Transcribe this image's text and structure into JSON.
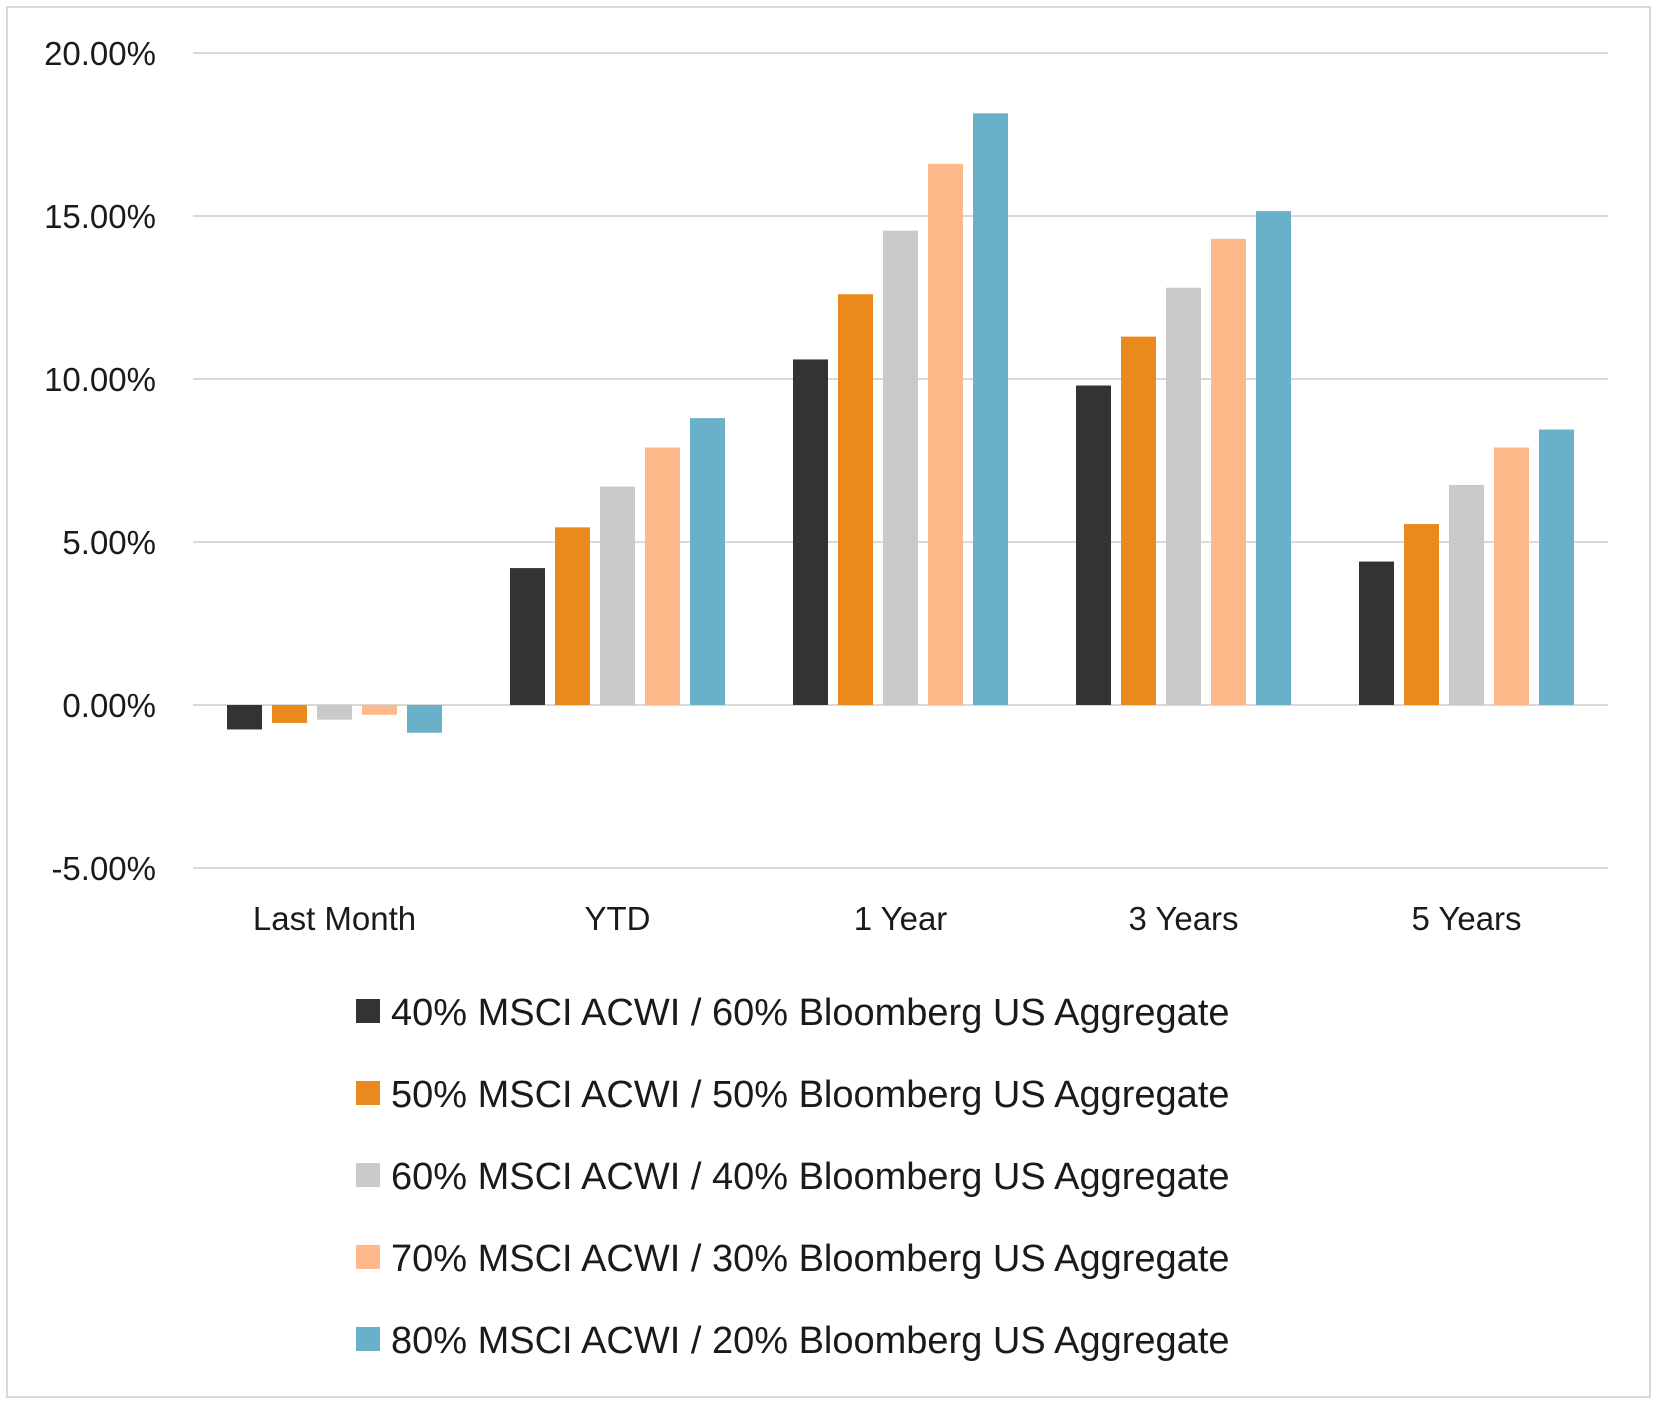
{
  "chart_data": {
    "type": "bar",
    "categories": [
      "Last Month",
      "YTD",
      "1 Year",
      "3 Years",
      "5 Years"
    ],
    "series": [
      {
        "name": "40% MSCI ACWI / 60% Bloomberg US Aggregate",
        "color": "#333333",
        "values": [
          -0.75,
          4.2,
          10.6,
          9.8,
          4.4
        ]
      },
      {
        "name": "50% MSCI ACWI / 50% Bloomberg US Aggregate",
        "color": "#ea8a1c",
        "values": [
          -0.55,
          5.45,
          12.6,
          11.3,
          5.55
        ]
      },
      {
        "name": "60% MSCI ACWI / 40% Bloomberg US Aggregate",
        "color": "#c9c9c9",
        "values": [
          -0.45,
          6.7,
          14.55,
          12.8,
          6.75
        ]
      },
      {
        "name": "70% MSCI ACWI / 30% Bloomberg US Aggregate",
        "color": "#fdb98a",
        "values": [
          -0.3,
          7.9,
          16.6,
          14.3,
          7.9
        ]
      },
      {
        "name": "80% MSCI ACWI / 20% Bloomberg US Aggregate",
        "color": "#6ab0c9",
        "values": [
          -0.85,
          8.8,
          18.15,
          15.15,
          8.45
        ]
      }
    ],
    "y_ticks": [
      "20.00%",
      "15.00%",
      "10.00%",
      "5.00%",
      "0.00%",
      "-5.00%"
    ],
    "y_tick_values": [
      20,
      15,
      10,
      5,
      0,
      -5
    ],
    "ylim": [
      -5,
      20
    ],
    "grid": true,
    "legend_position": "bottom",
    "title": "",
    "xlabel": "",
    "ylabel": ""
  }
}
